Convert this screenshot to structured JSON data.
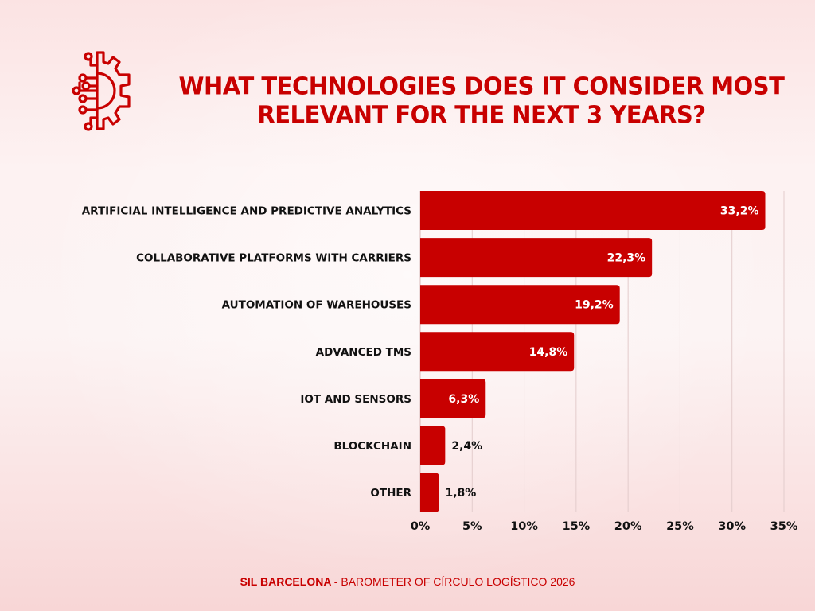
{
  "header": {
    "icon": "gear-circuit-icon",
    "title_line1": "WHAT TECHNOLOGIES DOES IT CONSIDER MOST",
    "title_line2": "RELEVANT FOR THE NEXT 3 YEARS?"
  },
  "colors": {
    "accent": "#c80000",
    "label_inside": "#ffffff",
    "label_outside": "#111111",
    "gridline": "#e3cccc"
  },
  "footer": {
    "brand": "SIL BARCELONA -",
    "text": "BAROMETER OF CÍRCULO  LOGÍSTICO 2026"
  },
  "chart_data": {
    "type": "bar",
    "orientation": "horizontal",
    "title": "WHAT TECHNOLOGIES DOES IT CONSIDER MOST RELEVANT FOR THE NEXT 3 YEARS?",
    "xlabel": "",
    "ylabel": "",
    "categories": [
      "ARTIFICIAL INTELLIGENCE AND PREDICTIVE ANALYTICS",
      "COLLABORATIVE PLATFORMS WITH CARRIERS",
      "AUTOMATION OF WAREHOUSES",
      "ADVANCED TMS",
      "IOT AND SENSORS",
      "BLOCKCHAIN",
      "OTHER"
    ],
    "values": [
      33.2,
      22.3,
      19.2,
      14.8,
      6.3,
      2.4,
      1.8
    ],
    "data_labels": [
      "33,2%",
      "22,3%",
      "19,2%",
      "14,8%",
      "6,3%",
      "2,4%",
      "1,8%"
    ],
    "xlim": [
      0,
      35
    ],
    "xticks": [
      0,
      5,
      10,
      15,
      20,
      25,
      30,
      35
    ],
    "xtick_labels": [
      "0%",
      "5%",
      "10%",
      "15%",
      "20%",
      "25%",
      "30%",
      "35%"
    ],
    "grid": "vertical",
    "legend": "none",
    "unit": "%"
  }
}
